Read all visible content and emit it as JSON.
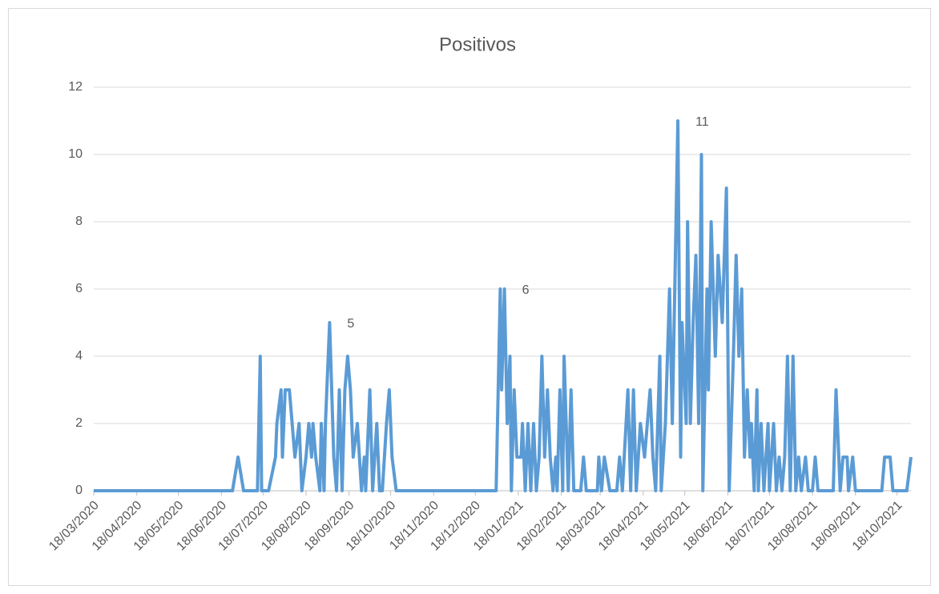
{
  "chart_data": {
    "type": "line",
    "title": "Positivos",
    "x": [
      "18/03/2020",
      "26/06/2020",
      "30/06/2020",
      "04/07/2020",
      "14/07/2020",
      "16/07/2020",
      "17/07/2020",
      "22/07/2020",
      "27/07/2020",
      "28/07/2020",
      "31/07/2020",
      "01/08/2020",
      "03/08/2020",
      "06/08/2020",
      "10/08/2020",
      "13/08/2020",
      "15/08/2020",
      "18/08/2020",
      "20/08/2020",
      "22/08/2020",
      "23/08/2020",
      "25/08/2020",
      "28/08/2020",
      "29/08/2020",
      "31/08/2020",
      "01/09/2020",
      "04/09/2020",
      "07/09/2020",
      "09/09/2020",
      "11/09/2020",
      "13/09/2020",
      "15/09/2020",
      "17/09/2020",
      "19/09/2020",
      "21/09/2020",
      "24/09/2020",
      "27/09/2020",
      "29/09/2020",
      "30/09/2020",
      "03/10/2020",
      "05/10/2020",
      "08/10/2020",
      "10/10/2020",
      "12/10/2020",
      "15/10/2020",
      "17/10/2020",
      "19/10/2020",
      "22/10/2020",
      "02/01/2021",
      "05/01/2021",
      "06/01/2021",
      "08/01/2021",
      "10/01/2021",
      "12/01/2021",
      "13/01/2021",
      "15/01/2021",
      "17/01/2021",
      "20/01/2021",
      "21/01/2021",
      "23/01/2021",
      "25/01/2021",
      "27/01/2021",
      "29/01/2021",
      "31/01/2021",
      "02/02/2021",
      "04/02/2021",
      "06/02/2021",
      "08/02/2021",
      "10/02/2021",
      "12/02/2021",
      "14/02/2021",
      "15/02/2021",
      "17/02/2021",
      "19/02/2021",
      "20/02/2021",
      "23/02/2021",
      "25/02/2021",
      "27/02/2021",
      "04/03/2021",
      "06/03/2021",
      "08/03/2021",
      "16/03/2021",
      "17/03/2021",
      "19/03/2021",
      "21/03/2021",
      "25/03/2021",
      "30/03/2021",
      "01/04/2021",
      "03/04/2021",
      "07/04/2021",
      "09/04/2021",
      "11/04/2021",
      "13/04/2021",
      "16/04/2021",
      "19/04/2021",
      "21/04/2021",
      "23/04/2021",
      "25/04/2021",
      "27/04/2021",
      "30/04/2021",
      "01/05/2021",
      "04/05/2021",
      "07/05/2021",
      "09/05/2021",
      "13/05/2021",
      "15/05/2021",
      "16/05/2021",
      "19/05/2021",
      "20/05/2021",
      "22/05/2021",
      "24/05/2021",
      "26/05/2021",
      "28/05/2021",
      "30/05/2021",
      "31/05/2021",
      "03/06/2021",
      "04/06/2021",
      "06/06/2021",
      "09/06/2021",
      "11/06/2021",
      "14/06/2021",
      "17/06/2021",
      "19/06/2021",
      "22/06/2021",
      "24/06/2021",
      "26/06/2021",
      "28/06/2021",
      "30/06/2021",
      "02/07/2021",
      "04/07/2021",
      "05/07/2021",
      "07/07/2021",
      "09/07/2021",
      "10/07/2021",
      "12/07/2021",
      "14/07/2021",
      "17/07/2021",
      "18/07/2021",
      "21/07/2021",
      "23/07/2021",
      "25/07/2021",
      "27/07/2021",
      "29/07/2021",
      "31/07/2021",
      "02/08/2021",
      "04/08/2021",
      "06/08/2021",
      "08/08/2021",
      "10/08/2021",
      "13/08/2021",
      "15/08/2021",
      "18/08/2021",
      "20/08/2021",
      "22/08/2021",
      "02/09/2021",
      "04/09/2021",
      "07/09/2021",
      "09/09/2021",
      "12/09/2021",
      "13/09/2021",
      "16/09/2021",
      "18/09/2021",
      "07/10/2021",
      "09/10/2021",
      "13/10/2021",
      "15/10/2021",
      "25/10/2021",
      "28/10/2021"
    ],
    "series": [
      {
        "color": "#5b9bd5",
        "values": [
          0,
          0,
          1,
          0,
          0,
          4,
          0,
          0,
          1,
          2,
          3,
          1,
          3,
          3,
          1,
          2,
          0,
          1,
          2,
          1,
          2,
          1,
          0,
          2,
          0,
          2,
          5,
          1,
          0,
          3,
          0,
          3,
          4,
          3,
          1,
          2,
          0,
          1,
          0,
          3,
          0,
          2,
          0,
          0,
          2,
          3,
          1,
          0,
          0,
          6,
          3,
          6,
          2,
          4,
          0,
          3,
          1,
          1,
          2,
          0,
          2,
          0,
          2,
          0,
          1,
          4,
          1,
          3,
          1,
          0,
          1,
          0,
          3,
          0,
          4,
          0,
          3,
          0,
          0,
          1,
          0,
          0,
          1,
          0,
          1,
          0,
          0,
          1,
          0,
          3,
          0,
          3,
          0,
          2,
          1,
          2,
          3,
          1,
          0,
          4,
          0,
          2,
          6,
          2,
          11,
          1,
          5,
          2,
          8,
          2,
          5,
          7,
          2,
          10,
          0,
          6,
          3,
          8,
          4,
          7,
          5,
          9,
          0,
          4,
          7,
          4,
          6,
          1,
          3,
          1,
          2,
          0,
          3,
          0,
          2,
          0,
          2,
          0,
          2,
          0,
          1,
          0,
          1,
          4,
          0,
          4,
          0,
          1,
          0,
          1,
          0,
          0,
          1,
          0,
          0,
          3,
          0,
          1,
          1,
          0,
          1,
          0,
          0,
          1,
          1,
          0,
          0,
          1
        ]
      }
    ],
    "annotations": [
      {
        "label": "5",
        "x": "04/09/2020",
        "value": 5
      },
      {
        "label": "6",
        "x": "08/01/2021",
        "value": 6
      },
      {
        "label": "11",
        "x": "13/05/2021",
        "value": 11
      }
    ],
    "xlim": [
      "18/03/2020",
      "28/10/2021"
    ],
    "xticks": [
      "18/03/2020",
      "18/04/2020",
      "18/05/2020",
      "18/06/2020",
      "18/07/2020",
      "18/08/2020",
      "18/09/2020",
      "18/10/2020",
      "18/11/2020",
      "18/12/2020",
      "18/01/2021",
      "18/02/2021",
      "18/03/2021",
      "18/04/2021",
      "18/05/2021",
      "18/06/2021",
      "18/07/2021",
      "18/08/2021",
      "18/09/2021",
      "18/10/2021"
    ],
    "ylim": [
      0,
      12
    ],
    "yticks": [
      0,
      2,
      4,
      6,
      8,
      10,
      12
    ],
    "grid": true
  }
}
